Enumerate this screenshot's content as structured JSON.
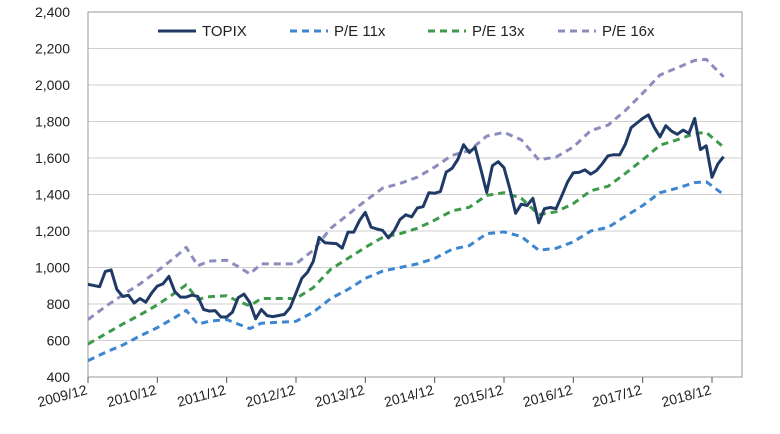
{
  "chart_data": {
    "type": "line",
    "title": "",
    "xlabel": "",
    "ylabel": "",
    "x_tick_labels": [
      "2009/12",
      "2010/12",
      "2011/12",
      "2012/12",
      "2013/12",
      "2014/12",
      "2015/12",
      "2016/12",
      "2017/12",
      "2018/12"
    ],
    "x_range": [
      "2009/12",
      "2018/12"
    ],
    "y_ticks": [
      "400",
      "600",
      "800",
      "1,000",
      "1,200",
      "1,400",
      "1,600",
      "1,800",
      "2,000",
      "2,200",
      "2,400"
    ],
    "ylim": [
      400,
      2400
    ],
    "grid": "horizontal",
    "legend_position": "top",
    "series": [
      {
        "name": "TOPIX",
        "style": "solid",
        "color": "#1f3a66",
        "points": [
          [
            "2009/12",
            908
          ],
          [
            "2010/02",
            895
          ],
          [
            "2010/03",
            978
          ],
          [
            "2010/04",
            987
          ],
          [
            "2010/05",
            880
          ],
          [
            "2010/06",
            841
          ],
          [
            "2010/07",
            848
          ],
          [
            "2010/08",
            805
          ],
          [
            "2010/09",
            830
          ],
          [
            "2010/10",
            810
          ],
          [
            "2010/11",
            860
          ],
          [
            "2010/12",
            898
          ],
          [
            "2011/01",
            911
          ],
          [
            "2011/02",
            951
          ],
          [
            "2011/03",
            869
          ],
          [
            "2011/04",
            838
          ],
          [
            "2011/05",
            838
          ],
          [
            "2011/06",
            849
          ],
          [
            "2011/07",
            841
          ],
          [
            "2011/08",
            770
          ],
          [
            "2011/09",
            761
          ],
          [
            "2011/10",
            764
          ],
          [
            "2011/11",
            729
          ],
          [
            "2011/12",
            729
          ],
          [
            "2012/01",
            755
          ],
          [
            "2012/02",
            835
          ],
          [
            "2012/03",
            854
          ],
          [
            "2012/04",
            808
          ],
          [
            "2012/05",
            719
          ],
          [
            "2012/06",
            770
          ],
          [
            "2012/07",
            736
          ],
          [
            "2012/08",
            731
          ],
          [
            "2012/09",
            737
          ],
          [
            "2012/10",
            743
          ],
          [
            "2012/11",
            781
          ],
          [
            "2012/12",
            860
          ],
          [
            "2013/01",
            940
          ],
          [
            "2013/02",
            975
          ],
          [
            "2013/03",
            1034
          ],
          [
            "2013/04",
            1165
          ],
          [
            "2013/05",
            1136
          ],
          [
            "2013/06",
            1133
          ],
          [
            "2013/07",
            1131
          ],
          [
            "2013/08",
            1106
          ],
          [
            "2013/09",
            1194
          ],
          [
            "2013/10",
            1194
          ],
          [
            "2013/11",
            1258
          ],
          [
            "2013/12",
            1302
          ],
          [
            "2014/01",
            1221
          ],
          [
            "2014/02",
            1211
          ],
          [
            "2014/03",
            1203
          ],
          [
            "2014/04",
            1162
          ],
          [
            "2014/05",
            1201
          ],
          [
            "2014/06",
            1263
          ],
          [
            "2014/07",
            1289
          ],
          [
            "2014/08",
            1277
          ],
          [
            "2014/09",
            1326
          ],
          [
            "2014/10",
            1333
          ],
          [
            "2014/11",
            1410
          ],
          [
            "2014/12",
            1407
          ],
          [
            "2015/01",
            1416
          ],
          [
            "2015/02",
            1523
          ],
          [
            "2015/03",
            1543
          ],
          [
            "2015/04",
            1592
          ],
          [
            "2015/05",
            1673
          ],
          [
            "2015/06",
            1630
          ],
          [
            "2015/07",
            1659
          ],
          [
            "2015/08",
            1537
          ],
          [
            "2015/09",
            1411
          ],
          [
            "2015/10",
            1558
          ],
          [
            "2015/11",
            1580
          ],
          [
            "2015/12",
            1547
          ],
          [
            "2016/01",
            1432
          ],
          [
            "2016/02",
            1297
          ],
          [
            "2016/03",
            1347
          ],
          [
            "2016/04",
            1340
          ],
          [
            "2016/05",
            1379
          ],
          [
            "2016/06",
            1245
          ],
          [
            "2016/07",
            1322
          ],
          [
            "2016/08",
            1329
          ],
          [
            "2016/09",
            1322
          ],
          [
            "2016/10",
            1393
          ],
          [
            "2016/11",
            1469
          ],
          [
            "2016/12",
            1519
          ],
          [
            "2017/01",
            1521
          ],
          [
            "2017/02",
            1535
          ],
          [
            "2017/03",
            1512
          ],
          [
            "2017/04",
            1531
          ],
          [
            "2017/05",
            1568
          ],
          [
            "2017/06",
            1612
          ],
          [
            "2017/07",
            1618
          ],
          [
            "2017/08",
            1617
          ],
          [
            "2017/09",
            1675
          ],
          [
            "2017/10",
            1766
          ],
          [
            "2017/11",
            1792
          ],
          [
            "2017/12",
            1817
          ],
          [
            "2018/01",
            1836
          ],
          [
            "2018/02",
            1768
          ],
          [
            "2018/03",
            1716
          ],
          [
            "2018/04",
            1777
          ],
          [
            "2018/05",
            1747
          ],
          [
            "2018/06",
            1730
          ],
          [
            "2018/07",
            1753
          ],
          [
            "2018/08",
            1735
          ],
          [
            "2018/09",
            1817
          ],
          [
            "2018/10",
            1646
          ],
          [
            "2018/11",
            1667
          ],
          [
            "2018/12",
            1494
          ],
          [
            "2019/01",
            1567
          ],
          [
            "2019/02",
            1607
          ]
        ]
      },
      {
        "name": "P/E 11x",
        "style": "dashed",
        "color": "#3d86d1",
        "points": [
          [
            "2009/12",
            490
          ],
          [
            "2010/03",
            535
          ],
          [
            "2010/06",
            575
          ],
          [
            "2010/09",
            625
          ],
          [
            "2010/12",
            670
          ],
          [
            "2011/03",
            725
          ],
          [
            "2011/05",
            765
          ],
          [
            "2011/07",
            690
          ],
          [
            "2011/09",
            705
          ],
          [
            "2011/12",
            715
          ],
          [
            "2012/02",
            690
          ],
          [
            "2012/04",
            665
          ],
          [
            "2012/06",
            695
          ],
          [
            "2012/09",
            700
          ],
          [
            "2012/12",
            705
          ],
          [
            "2013/03",
            755
          ],
          [
            "2013/06",
            830
          ],
          [
            "2013/09",
            880
          ],
          [
            "2013/12",
            940
          ],
          [
            "2014/03",
            980
          ],
          [
            "2014/06",
            1000
          ],
          [
            "2014/09",
            1020
          ],
          [
            "2014/12",
            1050
          ],
          [
            "2015/03",
            1100
          ],
          [
            "2015/06",
            1120
          ],
          [
            "2015/09",
            1185
          ],
          [
            "2015/12",
            1195
          ],
          [
            "2016/03",
            1170
          ],
          [
            "2016/06",
            1095
          ],
          [
            "2016/09",
            1105
          ],
          [
            "2016/12",
            1140
          ],
          [
            "2017/03",
            1200
          ],
          [
            "2017/06",
            1220
          ],
          [
            "2017/09",
            1280
          ],
          [
            "2017/12",
            1340
          ],
          [
            "2018/03",
            1410
          ],
          [
            "2018/06",
            1435
          ],
          [
            "2018/09",
            1465
          ],
          [
            "2018/11",
            1470
          ],
          [
            "2019/02",
            1400
          ]
        ]
      },
      {
        "name": "P/E 13x",
        "style": "dashed",
        "color": "#3d9a4a",
        "points": [
          [
            "2009/12",
            580
          ],
          [
            "2010/03",
            635
          ],
          [
            "2010/06",
            690
          ],
          [
            "2010/09",
            740
          ],
          [
            "2010/12",
            795
          ],
          [
            "2011/03",
            860
          ],
          [
            "2011/05",
            905
          ],
          [
            "2011/07",
            825
          ],
          [
            "2011/09",
            840
          ],
          [
            "2011/12",
            845
          ],
          [
            "2012/02",
            815
          ],
          [
            "2012/04",
            790
          ],
          [
            "2012/06",
            830
          ],
          [
            "2012/09",
            830
          ],
          [
            "2012/12",
            830
          ],
          [
            "2013/03",
            890
          ],
          [
            "2013/06",
            990
          ],
          [
            "2013/09",
            1050
          ],
          [
            "2013/12",
            1110
          ],
          [
            "2014/03",
            1165
          ],
          [
            "2014/06",
            1185
          ],
          [
            "2014/09",
            1215
          ],
          [
            "2014/12",
            1260
          ],
          [
            "2015/03",
            1310
          ],
          [
            "2015/06",
            1330
          ],
          [
            "2015/09",
            1395
          ],
          [
            "2015/12",
            1410
          ],
          [
            "2016/03",
            1380
          ],
          [
            "2016/06",
            1290
          ],
          [
            "2016/09",
            1305
          ],
          [
            "2016/12",
            1350
          ],
          [
            "2017/03",
            1420
          ],
          [
            "2017/06",
            1445
          ],
          [
            "2017/09",
            1515
          ],
          [
            "2017/12",
            1590
          ],
          [
            "2018/03",
            1670
          ],
          [
            "2018/06",
            1700
          ],
          [
            "2018/09",
            1735
          ],
          [
            "2018/11",
            1740
          ],
          [
            "2019/02",
            1660
          ]
        ]
      },
      {
        "name": "P/E 16x",
        "style": "dashed",
        "color": "#8c8cbf",
        "points": [
          [
            "2009/12",
            715
          ],
          [
            "2010/03",
            785
          ],
          [
            "2010/06",
            850
          ],
          [
            "2010/09",
            910
          ],
          [
            "2010/12",
            980
          ],
          [
            "2011/03",
            1055
          ],
          [
            "2011/05",
            1110
          ],
          [
            "2011/07",
            1010
          ],
          [
            "2011/09",
            1035
          ],
          [
            "2011/12",
            1040
          ],
          [
            "2012/02",
            1005
          ],
          [
            "2012/04",
            965
          ],
          [
            "2012/06",
            1020
          ],
          [
            "2012/09",
            1020
          ],
          [
            "2012/12",
            1020
          ],
          [
            "2013/03",
            1095
          ],
          [
            "2013/06",
            1215
          ],
          [
            "2013/09",
            1290
          ],
          [
            "2013/12",
            1365
          ],
          [
            "2014/03",
            1435
          ],
          [
            "2014/06",
            1460
          ],
          [
            "2014/09",
            1495
          ],
          [
            "2014/12",
            1550
          ],
          [
            "2015/03",
            1615
          ],
          [
            "2015/06",
            1640
          ],
          [
            "2015/09",
            1720
          ],
          [
            "2015/12",
            1740
          ],
          [
            "2016/03",
            1700
          ],
          [
            "2016/06",
            1590
          ],
          [
            "2016/09",
            1605
          ],
          [
            "2016/12",
            1660
          ],
          [
            "2017/03",
            1750
          ],
          [
            "2017/06",
            1780
          ],
          [
            "2017/09",
            1860
          ],
          [
            "2017/12",
            1955
          ],
          [
            "2018/03",
            2055
          ],
          [
            "2018/06",
            2095
          ],
          [
            "2018/09",
            2135
          ],
          [
            "2018/11",
            2140
          ],
          [
            "2019/02",
            2045
          ]
        ]
      }
    ]
  }
}
